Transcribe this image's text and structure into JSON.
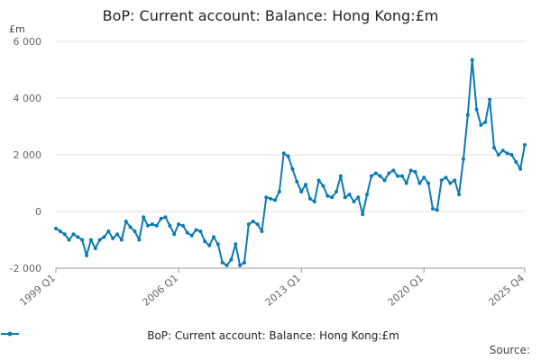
{
  "header": {
    "title": "BoP: Current account: Balance: Hong Kong:£m",
    "unit": "£m"
  },
  "legend": {
    "label": "BoP: Current account: Balance: Hong Kong:£m"
  },
  "footer": {
    "source": "Source:"
  },
  "colors": {
    "line": "#0b7bb5",
    "grid": "#e0e0e0",
    "axis_text": "#666666"
  },
  "chart_data": {
    "type": "line",
    "title": "BoP: Current account: Balance: Hong Kong:£m",
    "ylabel": "£m",
    "xlabel": "",
    "ylim": [
      -2000,
      6000
    ],
    "yticks": [
      -2000,
      0,
      2000,
      4000,
      6000
    ],
    "ytick_labels": [
      "-2 000",
      "0",
      "2 000",
      "4 000",
      "6 000"
    ],
    "xtick_labels": [
      "1999 Q1",
      "2006 Q1",
      "2013 Q1",
      "2020 Q1",
      "2025 Q4"
    ],
    "xtick_index": [
      0,
      28,
      56,
      84,
      107
    ],
    "grid": true,
    "legend_position": "bottom",
    "series": [
      {
        "name": "BoP: Current account: Balance: Hong Kong:£m",
        "start": "1999 Q1",
        "end": "2025 Q4",
        "values": [
          -600,
          -700,
          -800,
          -1000,
          -800,
          -900,
          -1000,
          -1550,
          -1000,
          -1300,
          -1000,
          -900,
          -700,
          -950,
          -800,
          -1000,
          -350,
          -550,
          -700,
          -1000,
          -200,
          -500,
          -450,
          -500,
          -250,
          -200,
          -500,
          -800,
          -450,
          -500,
          -750,
          -850,
          -650,
          -700,
          -1050,
          -1200,
          -900,
          -1150,
          -1800,
          -1900,
          -1700,
          -1150,
          -1900,
          -1800,
          -450,
          -350,
          -450,
          -700,
          500,
          450,
          400,
          700,
          2050,
          1950,
          1500,
          1050,
          700,
          950,
          450,
          350,
          1100,
          900,
          550,
          500,
          700,
          1250,
          500,
          600,
          350,
          500,
          -100,
          600,
          1250,
          1350,
          1250,
          1100,
          1350,
          1450,
          1250,
          1250,
          1000,
          1450,
          1400,
          1000,
          1200,
          1000,
          100,
          50,
          1100,
          1200,
          1000,
          1100,
          600,
          1850,
          3400,
          5350,
          3600,
          3050,
          3150,
          3950,
          2250,
          2000,
          2150,
          2050,
          2000,
          1750,
          1500,
          2350
        ]
      }
    ]
  }
}
